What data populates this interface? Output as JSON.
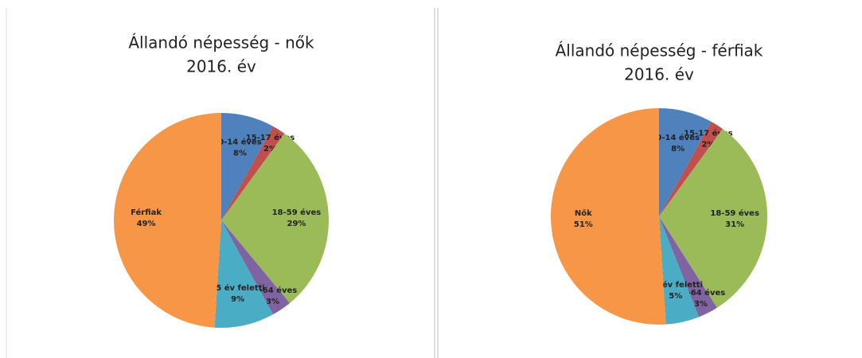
{
  "chart_data": [
    {
      "type": "pie",
      "title": "Állandó népesség - nők",
      "subtitle": "2016. év",
      "categories": [
        "0-14 éves",
        "15-17 éves",
        "18-59 éves",
        "60-64 éves",
        "65 év feletti",
        "Férfiak"
      ],
      "values": [
        8,
        2,
        29,
        3,
        9,
        49
      ],
      "value_labels": [
        "8%",
        "2%",
        "29%",
        "3%",
        "9%",
        "49%"
      ],
      "colors": [
        "#4f81bd",
        "#c0504d",
        "#9bbb59",
        "#8064a2",
        "#4bacc6",
        "#f79646"
      ]
    },
    {
      "type": "pie",
      "title": "Állandó népesség - férfiak",
      "subtitle": "2016. év",
      "categories": [
        "0-14 éves",
        "15-17 éves",
        "18-59 éves",
        "60-64 éves",
        "65 év feletti",
        "Nők"
      ],
      "values": [
        8,
        2,
        31,
        3,
        5,
        51
      ],
      "value_labels": [
        "8%",
        "2%",
        "31%",
        "3%",
        "5%",
        "51%"
      ],
      "colors": [
        "#4f81bd",
        "#c0504d",
        "#9bbb59",
        "#8064a2",
        "#4bacc6",
        "#f79646"
      ]
    }
  ]
}
